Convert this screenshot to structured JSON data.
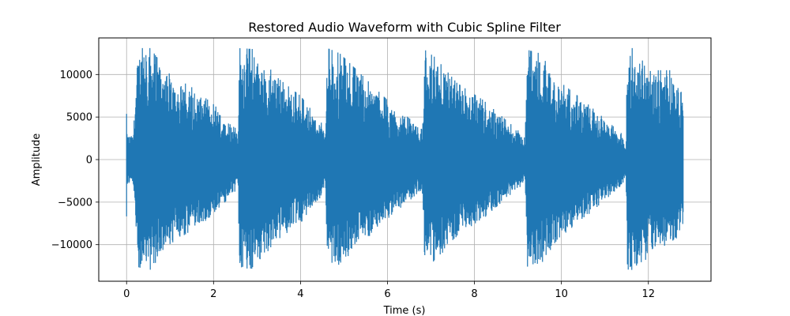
{
  "chart_data": {
    "type": "line",
    "title": "Restored Audio Waveform with Cubic Spline Filter",
    "xlabel": "Time (s)",
    "ylabel": "Amplitude",
    "xlim": [
      -0.64,
      13.44
    ],
    "ylim": [
      -14300,
      14300
    ],
    "x_ticks": [
      {
        "value": 0,
        "label": "0"
      },
      {
        "value": 2,
        "label": "2"
      },
      {
        "value": 4,
        "label": "4"
      },
      {
        "value": 6,
        "label": "6"
      },
      {
        "value": 8,
        "label": "8"
      },
      {
        "value": 10,
        "label": "10"
      },
      {
        "value": 12,
        "label": "12"
      }
    ],
    "y_ticks": [
      {
        "value": -10000,
        "label": "−10000"
      },
      {
        "value": -5000,
        "label": "−5000"
      },
      {
        "value": 0,
        "label": "0"
      },
      {
        "value": 5000,
        "label": "5000"
      },
      {
        "value": 10000,
        "label": "10000"
      }
    ],
    "grid": true,
    "series_color": "#1f77b4",
    "clip_level": 13100,
    "duration_s": 12.8,
    "envelope": [
      {
        "t": 0.0,
        "amp": 3000
      },
      {
        "t": 0.15,
        "amp": 2900
      },
      {
        "t": 0.25,
        "amp": 12000
      },
      {
        "t": 0.3,
        "amp": 13100
      },
      {
        "t": 0.55,
        "amp": 13100
      },
      {
        "t": 0.7,
        "amp": 12000
      },
      {
        "t": 1.0,
        "amp": 10000
      },
      {
        "t": 1.5,
        "amp": 8500
      },
      {
        "t": 2.0,
        "amp": 6500
      },
      {
        "t": 2.5,
        "amp": 4000
      },
      {
        "t": 2.56,
        "amp": 2500
      },
      {
        "t": 2.6,
        "amp": 13100
      },
      {
        "t": 2.9,
        "amp": 13000
      },
      {
        "t": 3.5,
        "amp": 9500
      },
      {
        "t": 4.0,
        "amp": 7500
      },
      {
        "t": 4.5,
        "amp": 4200
      },
      {
        "t": 4.57,
        "amp": 3000
      },
      {
        "t": 4.62,
        "amp": 13100
      },
      {
        "t": 4.9,
        "amp": 12500
      },
      {
        "t": 5.5,
        "amp": 9500
      },
      {
        "t": 6.0,
        "amp": 7000
      },
      {
        "t": 6.7,
        "amp": 4000
      },
      {
        "t": 6.8,
        "amp": 3500
      },
      {
        "t": 6.86,
        "amp": 12900
      },
      {
        "t": 7.1,
        "amp": 12000
      },
      {
        "t": 7.6,
        "amp": 9000
      },
      {
        "t": 8.2,
        "amp": 7000
      },
      {
        "t": 9.1,
        "amp": 3000
      },
      {
        "t": 9.16,
        "amp": 2500
      },
      {
        "t": 9.22,
        "amp": 12900
      },
      {
        "t": 9.5,
        "amp": 12500
      },
      {
        "t": 10.0,
        "amp": 9000
      },
      {
        "t": 10.5,
        "amp": 7000
      },
      {
        "t": 11.4,
        "amp": 3000
      },
      {
        "t": 11.48,
        "amp": 2000
      },
      {
        "t": 11.52,
        "amp": 13100
      },
      {
        "t": 11.8,
        "amp": 13100
      },
      {
        "t": 12.1,
        "amp": 10500
      },
      {
        "t": 12.5,
        "amp": 10500
      },
      {
        "t": 12.8,
        "amp": 8000
      }
    ]
  }
}
